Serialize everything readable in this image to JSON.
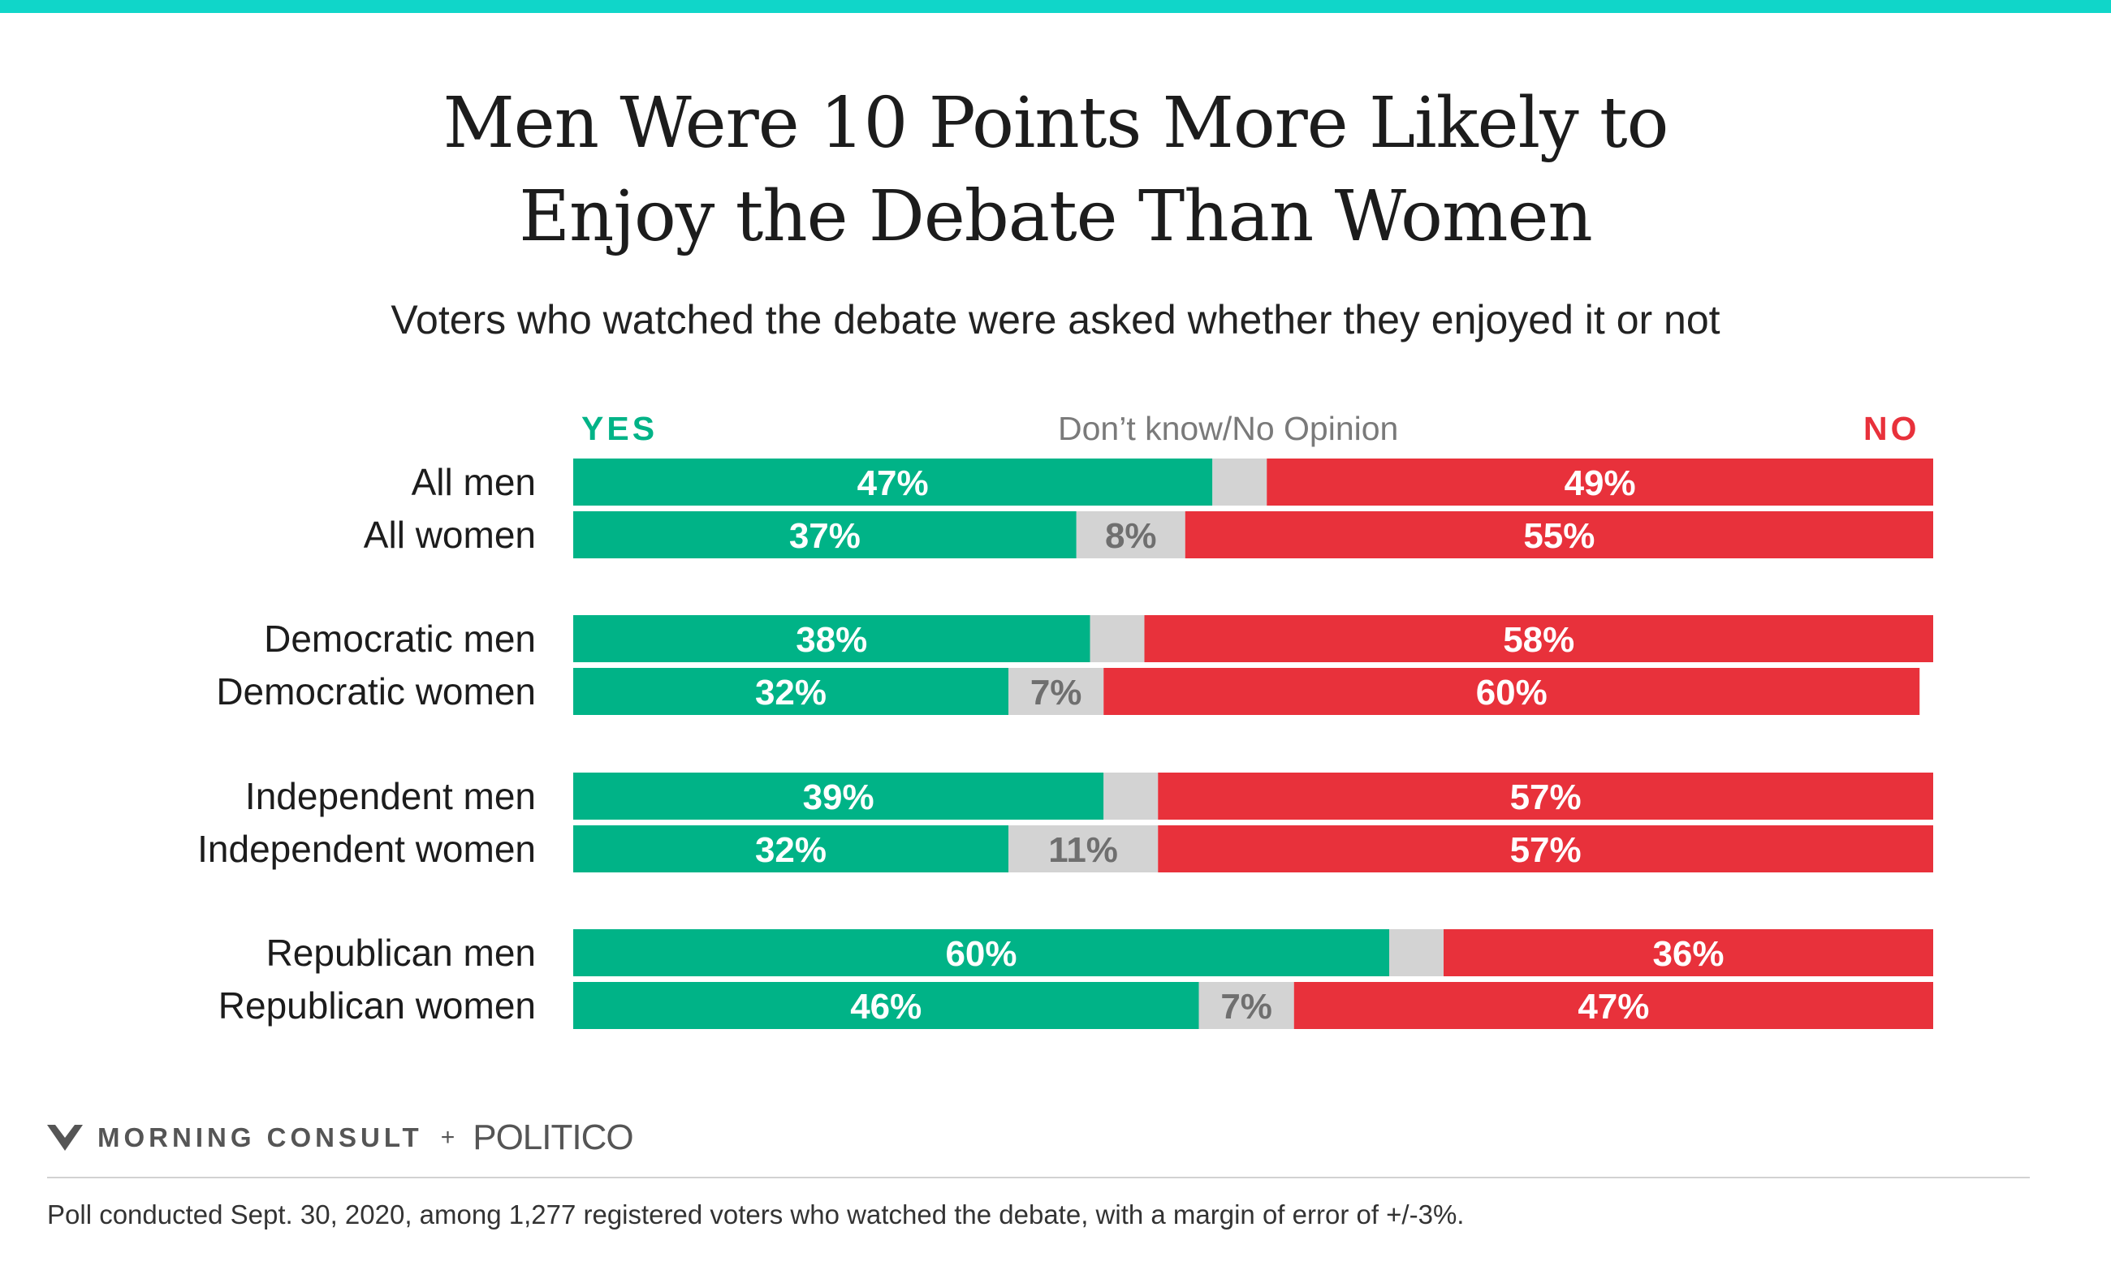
{
  "title_line1": "Men Were 10 Points More Likely to",
  "title_line2": "Enjoy the Debate Than Women",
  "subtitle": "Voters who watched the debate were asked whether they enjoyed it or not",
  "legend": {
    "yes": "YES",
    "dont_know": "Don’t know/No Opinion",
    "no": "NO"
  },
  "colors": {
    "yes": "#00b387",
    "dont_know": "#d3d3d3",
    "no": "#e8313b",
    "accent_bar": "#10d6c9"
  },
  "chart_data": {
    "type": "bar",
    "orientation": "horizontal-stacked-100",
    "categories": [
      "All men",
      "All women",
      "Democratic men",
      "Democratic women",
      "Independent men",
      "Independent women",
      "Republican men",
      "Republican women"
    ],
    "groups": [
      [
        "All men",
        "All women"
      ],
      [
        "Democratic men",
        "Democratic women"
      ],
      [
        "Independent men",
        "Independent women"
      ],
      [
        "Republican men",
        "Republican women"
      ]
    ],
    "series": [
      {
        "name": "YES",
        "values": [
          47,
          37,
          38,
          32,
          39,
          32,
          60,
          46
        ]
      },
      {
        "name": "Don’t know/No Opinion",
        "values": [
          4,
          8,
          4,
          7,
          4,
          11,
          4,
          7
        ]
      },
      {
        "name": "NO",
        "values": [
          49,
          55,
          58,
          60,
          57,
          57,
          36,
          47
        ]
      }
    ],
    "labels": {
      "YES": [
        "47%",
        "37%",
        "38%",
        "32%",
        "39%",
        "32%",
        "60%",
        "46%"
      ],
      "Don’t know/No Opinion": [
        "",
        "8%",
        "",
        "7%",
        "",
        "11%",
        "",
        "7%"
      ],
      "NO": [
        "49%",
        "55%",
        "58%",
        "60%",
        "57%",
        "57%",
        "36%",
        "47%"
      ]
    },
    "xlim": [
      0,
      100
    ],
    "legend_position": "top"
  },
  "footer": {
    "brand1": "MORNING CONSULT",
    "plus": "+",
    "brand2": "POLITICO",
    "note": "Poll conducted Sept. 30, 2020, among 1,277 registered voters who watched the debate, with a margin of error of +/-3%."
  }
}
